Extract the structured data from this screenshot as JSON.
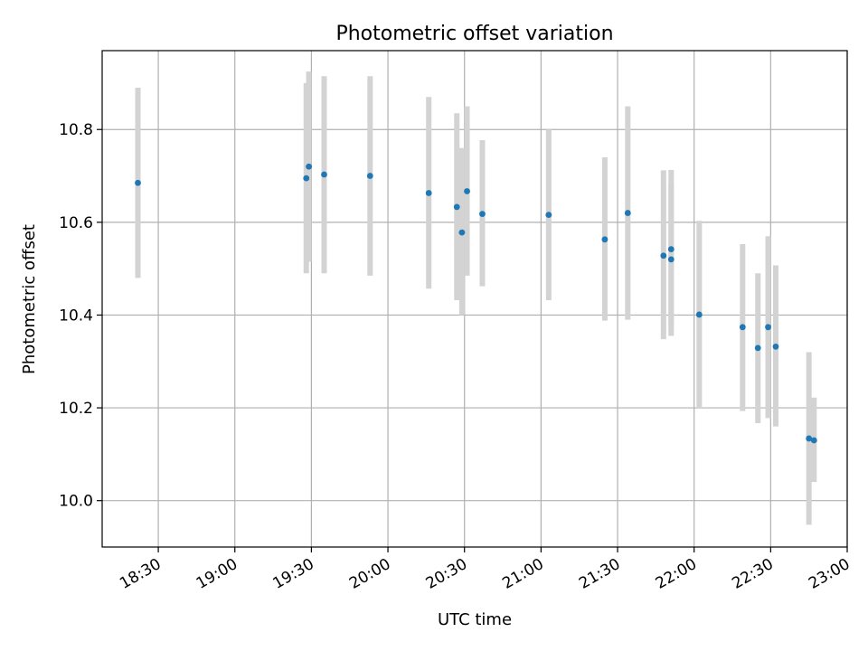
{
  "chart_data": {
    "type": "scatter",
    "title": "Photometric offset variation",
    "xlabel": "UTC time",
    "ylabel": "Photometric offset",
    "x_range": [
      "18:08",
      "23:00"
    ],
    "ylim": [
      9.9,
      10.97
    ],
    "grid": true,
    "x_ticks": [
      "18:30",
      "19:00",
      "19:30",
      "20:00",
      "20:30",
      "21:00",
      "21:30",
      "22:00",
      "22:30",
      "23:00"
    ],
    "y_ticks": [
      "10.0",
      "10.2",
      "10.4",
      "10.6",
      "10.8"
    ],
    "marker_color": "#1f77b4",
    "errorbar_color": "#d3d3d3",
    "series": [
      {
        "points": [
          {
            "x": "18:22",
            "y": 10.685,
            "ylow": 10.48,
            "yhigh": 10.89
          },
          {
            "x": "19:28",
            "y": 10.695,
            "ylow": 10.49,
            "yhigh": 10.9
          },
          {
            "x": "19:29",
            "y": 10.72,
            "ylow": 10.515,
            "yhigh": 10.925
          },
          {
            "x": "19:35",
            "y": 10.703,
            "ylow": 10.49,
            "yhigh": 10.915
          },
          {
            "x": "19:53",
            "y": 10.7,
            "ylow": 10.485,
            "yhigh": 10.915
          },
          {
            "x": "20:16",
            "y": 10.663,
            "ylow": 10.457,
            "yhigh": 10.87
          },
          {
            "x": "20:27",
            "y": 10.633,
            "ylow": 10.432,
            "yhigh": 10.835
          },
          {
            "x": "20:29",
            "y": 10.578,
            "ylow": 10.4,
            "yhigh": 10.76
          },
          {
            "x": "20:31",
            "y": 10.667,
            "ylow": 10.485,
            "yhigh": 10.85
          },
          {
            "x": "20:37",
            "y": 10.618,
            "ylow": 10.462,
            "yhigh": 10.777
          },
          {
            "x": "21:03",
            "y": 10.616,
            "ylow": 10.432,
            "yhigh": 10.8
          },
          {
            "x": "21:25",
            "y": 10.563,
            "ylow": 10.388,
            "yhigh": 10.74
          },
          {
            "x": "21:34",
            "y": 10.62,
            "ylow": 10.39,
            "yhigh": 10.85
          },
          {
            "x": "21:48",
            "y": 10.528,
            "ylow": 10.348,
            "yhigh": 10.712
          },
          {
            "x": "21:51",
            "y": 10.52,
            "ylow": 10.355,
            "yhigh": 10.682
          },
          {
            "x": "21:51",
            "y": 10.542,
            "ylow": 10.375,
            "yhigh": 10.713
          },
          {
            "x": "22:02",
            "y": 10.401,
            "ylow": 10.2,
            "yhigh": 10.603
          },
          {
            "x": "22:19",
            "y": 10.374,
            "ylow": 10.193,
            "yhigh": 10.553
          },
          {
            "x": "22:25",
            "y": 10.329,
            "ylow": 10.167,
            "yhigh": 10.49
          },
          {
            "x": "22:29",
            "y": 10.374,
            "ylow": 10.178,
            "yhigh": 10.57
          },
          {
            "x": "22:32",
            "y": 10.332,
            "ylow": 10.16,
            "yhigh": 10.507
          },
          {
            "x": "22:45",
            "y": 10.134,
            "ylow": 9.948,
            "yhigh": 10.32
          },
          {
            "x": "22:47",
            "y": 10.13,
            "ylow": 10.04,
            "yhigh": 10.222
          }
        ]
      }
    ]
  }
}
